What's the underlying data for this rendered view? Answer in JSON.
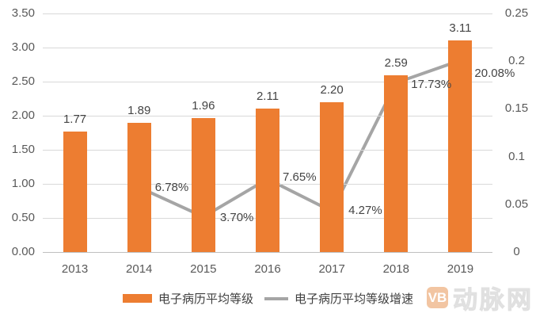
{
  "chart_data": {
    "type": "bar",
    "title": "",
    "categories": [
      "2013",
      "2014",
      "2015",
      "2016",
      "2017",
      "2018",
      "2019"
    ],
    "series": [
      {
        "name": "电子病历平均等级",
        "kind": "bar",
        "axis": "left",
        "color": "#ED7D31",
        "values": [
          1.77,
          1.89,
          1.96,
          2.11,
          2.2,
          2.59,
          3.11
        ],
        "labels": [
          "1.77",
          "1.89",
          "1.96",
          "2.11",
          "2.20",
          "2.59",
          "3.11"
        ]
      },
      {
        "name": "电子病历平均等级增速",
        "kind": "line",
        "axis": "right",
        "color": "#A5A5A5",
        "values": [
          null,
          0.0678,
          0.037,
          0.0765,
          0.0427,
          0.1773,
          0.2008
        ],
        "labels": [
          null,
          "6.78%",
          "3.70%",
          "7.65%",
          "4.27%",
          "17.73%",
          "20.08%"
        ]
      }
    ],
    "left_axis": {
      "min": 0,
      "max": 3.5,
      "ticks": [
        "3.50",
        "3.00",
        "2.50",
        "2.00",
        "1.50",
        "1.00",
        "0.50",
        "0.00"
      ]
    },
    "right_axis": {
      "min": 0,
      "max": 0.25,
      "ticks": [
        "0.25",
        "0.2",
        "0.15",
        "0.1",
        "0.05",
        "0"
      ]
    },
    "grid": true,
    "legend_position": "bottom",
    "gridline_color": "#D9D9D9",
    "axis_text_color": "#595959"
  },
  "watermark": {
    "badge": "VB",
    "text": "动脉网"
  }
}
